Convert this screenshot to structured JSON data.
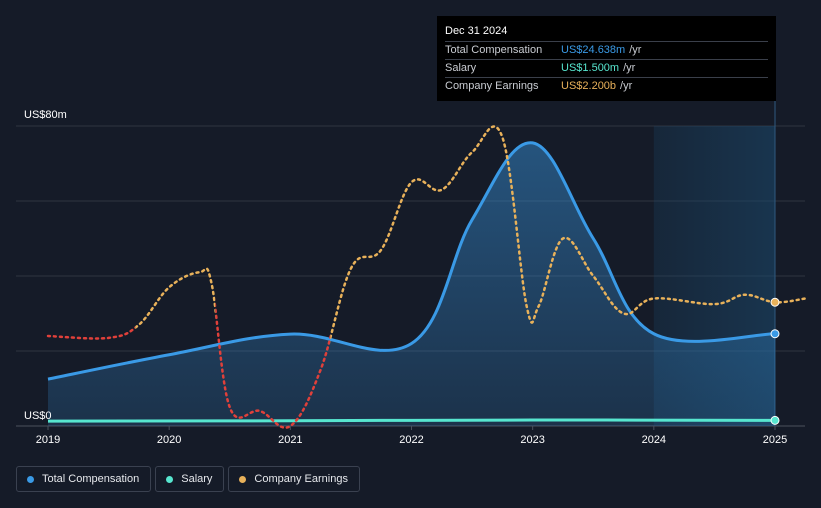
{
  "chart_data": {
    "type": "line",
    "y_axis_labels": [
      "US$80m",
      "US$0"
    ],
    "ylim": [
      0,
      80
    ],
    "xlim": [
      2019.0,
      2025.25
    ],
    "x_tick_labels": [
      "2019",
      "2020",
      "2021",
      "2022",
      "2023",
      "2024",
      "2025"
    ],
    "grid": true,
    "series": [
      {
        "name": "Total Compensation",
        "color": "#3a9ae6",
        "unit": "US$m",
        "points": [
          [
            2019.0,
            12.5
          ],
          [
            2020.0,
            19
          ],
          [
            2021.0,
            24.5
          ],
          [
            2022.0,
            22
          ],
          [
            2022.5,
            55
          ],
          [
            2023.0,
            75.5
          ],
          [
            2023.5,
            50
          ],
          [
            2024.0,
            24.6
          ],
          [
            2025.0,
            24.6
          ]
        ]
      },
      {
        "name": "Salary",
        "color": "#57e6cf",
        "unit": "US$m",
        "points": [
          [
            2019.0,
            1.3
          ],
          [
            2021.0,
            1.4
          ],
          [
            2023.0,
            1.6
          ],
          [
            2025.0,
            1.5
          ]
        ]
      },
      {
        "name": "Company Earnings",
        "color": "#e8b15a",
        "negative_color": "#e0403a",
        "unit": "relative scale",
        "points": [
          [
            2019.0,
            24
          ],
          [
            2019.5,
            23.5
          ],
          [
            2019.75,
            27
          ],
          [
            2020.0,
            37
          ],
          [
            2020.25,
            41
          ],
          [
            2020.35,
            38
          ],
          [
            2020.5,
            5
          ],
          [
            2020.75,
            4
          ],
          [
            2021.0,
            0
          ],
          [
            2021.25,
            15
          ],
          [
            2021.5,
            42
          ],
          [
            2021.75,
            47
          ],
          [
            2022.0,
            65
          ],
          [
            2022.25,
            63
          ],
          [
            2022.5,
            73
          ],
          [
            2022.75,
            77
          ],
          [
            2022.95,
            32
          ],
          [
            2023.05,
            32
          ],
          [
            2023.25,
            50
          ],
          [
            2023.5,
            40
          ],
          [
            2023.75,
            30
          ],
          [
            2024.0,
            34
          ],
          [
            2024.5,
            32.5
          ],
          [
            2024.75,
            35
          ],
          [
            2025.0,
            33
          ],
          [
            2025.25,
            34
          ]
        ]
      }
    ],
    "forecast_region_start": 2024.0,
    "tooltip": {
      "date": "Dec 31 2024",
      "rows": [
        {
          "label": "Total Compensation",
          "value": "US$24.638m",
          "unit": "/yr",
          "color": "#3a9ae6"
        },
        {
          "label": "Salary",
          "value": "US$1.500m",
          "unit": "/yr",
          "color": "#57e6cf"
        },
        {
          "label": "Company Earnings",
          "value": "US$2.200b",
          "unit": "/yr",
          "color": "#e8b15a"
        }
      ]
    }
  },
  "legend": [
    {
      "label": "Total Compensation",
      "color": "#3a9ae6"
    },
    {
      "label": "Salary",
      "color": "#57e6cf"
    },
    {
      "label": "Company Earnings",
      "color": "#e8b15a"
    }
  ]
}
